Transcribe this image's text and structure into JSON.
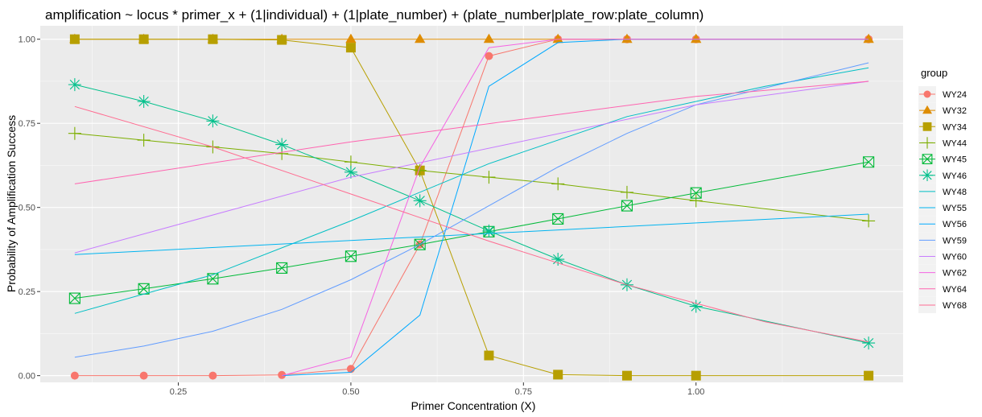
{
  "chart_data": {
    "type": "line",
    "title": "amplification ~  locus * primer_x + (1|individual) + (1|plate_number) + (plate_number|plate_row:plate_column)",
    "xlabel": "Primer Concentration (X)",
    "ylabel": "Probability of Amplification Success",
    "xlim": [
      0.05,
      1.3
    ],
    "ylim": [
      -0.02,
      1.04
    ],
    "x_ticks": [
      0.25,
      0.5,
      0.75,
      1.0
    ],
    "x_tick_labels": [
      "0.25",
      "0.50",
      "0.75",
      "1.00"
    ],
    "y_ticks": [
      0,
      0.25,
      0.5,
      0.75,
      1.0
    ],
    "y_tick_labels": [
      "0.00",
      "0.25",
      "0.50",
      "0.75",
      "1.00"
    ],
    "background": "#ebebeb",
    "grid": true,
    "legend": {
      "title": "group",
      "position": "right"
    },
    "series": [
      {
        "name": "WY24",
        "color": "#F8766D",
        "shape": "circle",
        "x": [
          0.1,
          0.2,
          0.3,
          0.4,
          0.5,
          0.6,
          0.7,
          0.8,
          0.9,
          1.0,
          1.25
        ],
        "y": [
          0.0,
          0.0,
          0.0,
          0.002,
          0.02,
          0.39,
          0.95,
          1.0,
          1.0,
          1.0,
          1.0
        ]
      },
      {
        "name": "WY32",
        "color": "#DE8C00",
        "shape": "triangle",
        "x": [
          0.1,
          0.2,
          0.3,
          0.4,
          0.5,
          0.6,
          0.7,
          0.8,
          0.9,
          1.0,
          1.25
        ],
        "y": [
          1.0,
          1.0,
          1.0,
          1.0,
          1.0,
          1.0,
          1.0,
          1.0,
          1.0,
          1.0,
          1.0
        ]
      },
      {
        "name": "WY34",
        "color": "#B79F00",
        "shape": "square",
        "x": [
          0.1,
          0.2,
          0.3,
          0.4,
          0.5,
          0.6,
          0.7,
          0.8,
          0.9,
          1.0,
          1.25
        ],
        "y": [
          1.0,
          1.0,
          1.0,
          0.998,
          0.975,
          0.61,
          0.06,
          0.003,
          0.0,
          0.0,
          0.0
        ]
      },
      {
        "name": "WY44",
        "color": "#7CAE00",
        "shape": "plus",
        "x": [
          0.1,
          0.2,
          0.3,
          0.4,
          0.5,
          0.6,
          0.7,
          0.8,
          0.9,
          1.0,
          1.25
        ],
        "y": [
          0.72,
          0.7,
          0.68,
          0.66,
          0.635,
          0.61,
          0.59,
          0.57,
          0.545,
          0.52,
          0.46
        ]
      },
      {
        "name": "WY45",
        "color": "#00BA38",
        "shape": "boxx",
        "x": [
          0.1,
          0.2,
          0.3,
          0.4,
          0.5,
          0.6,
          0.7,
          0.8,
          0.9,
          1.0,
          1.25
        ],
        "y": [
          0.23,
          0.258,
          0.288,
          0.32,
          0.355,
          0.39,
          0.428,
          0.466,
          0.505,
          0.543,
          0.635
        ]
      },
      {
        "name": "WY46",
        "color": "#00C08B",
        "shape": "asterisk",
        "x": [
          0.1,
          0.2,
          0.3,
          0.4,
          0.5,
          0.6,
          0.7,
          0.8,
          0.9,
          1.0,
          1.25
        ],
        "y": [
          0.865,
          0.815,
          0.757,
          0.687,
          0.605,
          0.52,
          0.43,
          0.346,
          0.27,
          0.206,
          0.097
        ]
      },
      {
        "name": "WY48",
        "color": "#00BFC4",
        "shape": "none",
        "x": [
          0.1,
          0.3,
          0.5,
          0.7,
          0.9,
          1.1,
          1.25
        ],
        "y": [
          0.185,
          0.3,
          0.46,
          0.63,
          0.77,
          0.86,
          0.915
        ]
      },
      {
        "name": "WY55",
        "color": "#00B4F0",
        "shape": "none",
        "x": [
          0.1,
          1.25
        ],
        "y": [
          0.36,
          0.48
        ]
      },
      {
        "name": "WY56",
        "color": "#00A9FF",
        "shape": "none",
        "x": [
          0.4,
          0.5,
          0.6,
          0.7,
          0.8,
          0.9,
          1.0,
          1.25
        ],
        "y": [
          0.0,
          0.01,
          0.18,
          0.86,
          0.99,
          1.0,
          1.0,
          1.0
        ]
      },
      {
        "name": "WY59",
        "color": "#619CFF",
        "shape": "none",
        "x": [
          0.1,
          0.2,
          0.3,
          0.4,
          0.5,
          0.6,
          0.7,
          0.8,
          0.9,
          1.0,
          1.25
        ],
        "y": [
          0.055,
          0.088,
          0.132,
          0.197,
          0.285,
          0.39,
          0.505,
          0.62,
          0.72,
          0.805,
          0.93
        ]
      },
      {
        "name": "WY60",
        "color": "#C77CFF",
        "shape": "none",
        "x": [
          0.1,
          0.5,
          1.0,
          1.25
        ],
        "y": [
          0.365,
          0.59,
          0.805,
          0.875
        ]
      },
      {
        "name": "WY62",
        "color": "#F564E3",
        "shape": "none",
        "x": [
          0.4,
          0.5,
          0.6,
          0.7,
          0.8,
          0.9,
          1.0,
          1.25
        ],
        "y": [
          0.0,
          0.055,
          0.62,
          0.975,
          1.0,
          1.0,
          1.0,
          1.0
        ]
      },
      {
        "name": "WY64",
        "color": "#FF64B0",
        "shape": "none",
        "x": [
          0.1,
          0.5,
          1.0,
          1.25
        ],
        "y": [
          0.57,
          0.695,
          0.83,
          0.875
        ]
      },
      {
        "name": "WY68",
        "color": "#FF6C91",
        "shape": "none",
        "x": [
          0.1,
          0.3,
          0.5,
          0.7,
          0.9,
          1.1,
          1.25
        ],
        "y": [
          0.8,
          0.68,
          0.54,
          0.4,
          0.27,
          0.16,
          0.1
        ]
      }
    ]
  }
}
